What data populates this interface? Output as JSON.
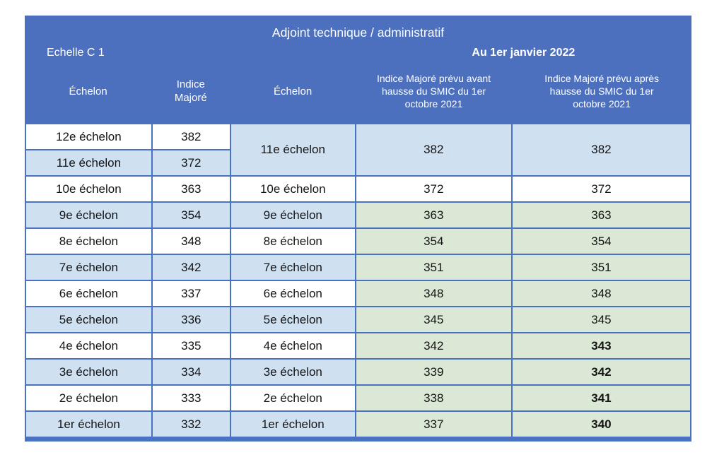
{
  "colors": {
    "header_blue": "#4c70bd",
    "grid_border_blue": "#4a72c2",
    "row_light_blue": "#cfe0f1",
    "cell_green": "#dce8d6",
    "header_text": "#ffffff",
    "cell_text": "#141414"
  },
  "table": {
    "title": "Adjoint technique / administratif",
    "scale_label": "Echelle C 1",
    "date_label": "Au 1er janvier 2022",
    "columns": [
      "Échelon",
      "Indice Majoré",
      "Échelon",
      "Indice Majoré prévu avant hausse du SMIC du 1er octobre 2021",
      "Indice Majoré prévu après hausse du SMIC du 1er octobre 2021"
    ],
    "rows": [
      {
        "left_echelon": "12e échelon",
        "left_indice": "382",
        "right_echelon": "11e échelon",
        "before": "382",
        "after": "382"
      },
      {
        "left_echelon": "11e échelon",
        "left_indice": "372"
      },
      {
        "left_echelon": "10e échelon",
        "left_indice": "363",
        "right_echelon": "10e échelon",
        "before": "372",
        "after": "372"
      },
      {
        "left_echelon": "9e échelon",
        "left_indice": "354",
        "right_echelon": "9e échelon",
        "before": "363",
        "after": "363"
      },
      {
        "left_echelon": "8e échelon",
        "left_indice": "348",
        "right_echelon": "8e échelon",
        "before": "354",
        "after": "354"
      },
      {
        "left_echelon": "7e échelon",
        "left_indice": "342",
        "right_echelon": "7e échelon",
        "before": "351",
        "after": "351"
      },
      {
        "left_echelon": "6e échelon",
        "left_indice": "337",
        "right_echelon": "6e échelon",
        "before": "348",
        "after": "348"
      },
      {
        "left_echelon": "5e échelon",
        "left_indice": "336",
        "right_echelon": "5e échelon",
        "before": "345",
        "after": "345"
      },
      {
        "left_echelon": "4e échelon",
        "left_indice": "335",
        "right_echelon": "4e échelon",
        "before": "342",
        "after": "343"
      },
      {
        "left_echelon": "3e échelon",
        "left_indice": "334",
        "right_echelon": "3e échelon",
        "before": "339",
        "after": "342"
      },
      {
        "left_echelon": "2e échelon",
        "left_indice": "333",
        "right_echelon": "2e échelon",
        "before": "338",
        "after": "341"
      },
      {
        "left_echelon": "1er échelon",
        "left_indice": "332",
        "right_echelon": "1er échelon",
        "before": "337",
        "after": "340"
      }
    ]
  }
}
